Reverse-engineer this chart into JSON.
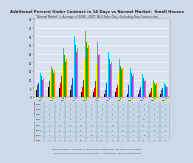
{
  "title": "Additional Percent Under Contract in 14 Days vs Normal Market:  Small Houses",
  "subtitle": "\"Normal Market\" is Average of 2004 - 2007. MLS Sales Only, Excluding New Construction",
  "background_color": "#cdd9e8",
  "chart_bg": "#dae3ef",
  "bar_colors": [
    "#000000",
    "#ff0000",
    "#1f4fc8",
    "#ffff00",
    "#00ccff",
    "#00aa00",
    "#aa44cc",
    "#ff8800"
  ],
  "series_names": [
    "2008",
    "2009",
    "2010",
    "2011",
    "2012",
    "2013",
    "2014",
    "2015"
  ],
  "months": [
    "Jan",
    "Feb",
    "Mar",
    "Apr",
    "May",
    "Jun",
    "Jul",
    "Aug",
    "Sep",
    "Oct",
    "Nov",
    "Dec"
  ],
  "data": {
    "2008": [
      4,
      6,
      5,
      4,
      3,
      3,
      2,
      3,
      2,
      2,
      2,
      2
    ],
    "2009": [
      7,
      9,
      8,
      7,
      6,
      5,
      4,
      5,
      4,
      4,
      3,
      4
    ],
    "2010": [
      8,
      10,
      12,
      11,
      10,
      9,
      8,
      7,
      7,
      6,
      5,
      5
    ],
    "2011": [
      10,
      13,
      18,
      20,
      22,
      19,
      16,
      14,
      12,
      10,
      8,
      7
    ],
    "2012": [
      14,
      18,
      28,
      35,
      38,
      32,
      26,
      22,
      17,
      13,
      10,
      8
    ],
    "2013": [
      12,
      16,
      24,
      30,
      32,
      27,
      22,
      18,
      14,
      11,
      8,
      7
    ],
    "2014": [
      10,
      14,
      20,
      26,
      28,
      24,
      19,
      16,
      12,
      9,
      7,
      6
    ],
    "2015": [
      11,
      15,
      22,
      28,
      30,
      25,
      20,
      17,
      13,
      10,
      8,
      6
    ]
  },
  "ylim": [
    0,
    45
  ],
  "yticks": [
    0,
    5,
    10,
    15,
    20,
    25,
    30,
    35,
    40,
    45
  ],
  "grid_color": "#ffffff",
  "table_bg": "#c8d8e8",
  "table_line_color": "#b0c4d8",
  "footer1": "Compiled by Agents for Home Buyers Ltd   www.AgentsforHomeBuyers.com    Data Sources: MLS & Glenbrook",
  "footer2": "Copyright 2011-2015 All rights reserved by Jim & Julie Jelmberg   -- All Rights Reserved -- not for other licensing purposes"
}
